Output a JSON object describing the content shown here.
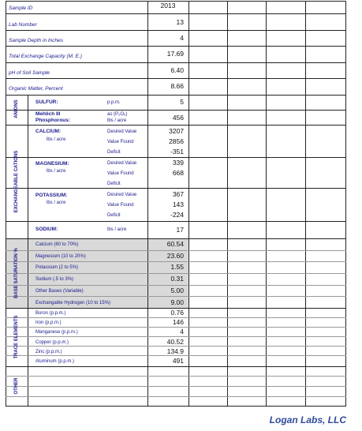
{
  "header": {
    "sample_id_label": "Sample ID",
    "year": "2013"
  },
  "rows": {
    "lab_number": {
      "label": "Lab Number",
      "value": "13"
    },
    "sample_depth": {
      "label": "Sample Depth in Inches",
      "value": "4"
    },
    "tec": {
      "label": "Total Exchange Capacity (M. E.)",
      "value": "17.69"
    },
    "ph": {
      "label": "pH of Soil Sample",
      "value": "6.40"
    },
    "organic": {
      "label": "Organic Matter, Percent",
      "value": "8.66"
    }
  },
  "anions": {
    "section": "ANIONS",
    "sulfur": {
      "label": "SULFUR:",
      "unit": "p.p.m.",
      "value": "5"
    },
    "phos": {
      "label1": "Mehlich III",
      "label2": "Phosphorous:",
      "unit1": "as (P₂O₅)",
      "unit2": "lbs / acre",
      "value": "456"
    }
  },
  "cations": {
    "section": "EXCHANGEABLE CATIONS",
    "calcium": {
      "label": "CALCIUM:",
      "sub": "lbs / acre",
      "desired_label": "Desired Value",
      "found_label": "Value Found",
      "deficit_label": "Deficit",
      "desired": "3207",
      "found": "2856",
      "deficit": "-351"
    },
    "magnesium": {
      "label": "MAGNESIUM:",
      "sub": "lbs / acre",
      "desired_label": "Desired Value",
      "found_label": "Value Found",
      "deficit_label": "Deficit",
      "desired": "339",
      "found": "668",
      "deficit": ""
    },
    "potassium": {
      "label": "POTASSIUM:",
      "sub": "lbs / acre",
      "desired_label": "Desired Value",
      "found_label": "Value Found",
      "deficit_label": "Deficit",
      "desired": "367",
      "found": "143",
      "deficit": "-224"
    },
    "sodium": {
      "label": "SODIUM:",
      "unit": "lbs / acre",
      "value": "17"
    }
  },
  "base_saturation": {
    "section": "BASE SATURATION %",
    "items": [
      {
        "label": "Calcium (60 to 70%)",
        "value": "60.54"
      },
      {
        "label": "Magnesium (10 to 20%)",
        "value": "23.60"
      },
      {
        "label": "Potassium (2 to 5%)",
        "value": "1.55"
      },
      {
        "label": "Sodium (.5 to 3%)",
        "value": "0.31"
      },
      {
        "label": "Other Bases (Variable)",
        "value": "5.00"
      },
      {
        "label": "Exchangable Hydrogen (10 to 15%)",
        "value": "9.00"
      }
    ]
  },
  "trace": {
    "section": "TRACE ELEMENTS",
    "items": [
      {
        "label": "Boron (p.p.m.)",
        "value": "0.76"
      },
      {
        "label": "Iron (p.p.m.)",
        "value": "146"
      },
      {
        "label": "Manganese (p.p.m.)",
        "value": "4"
      },
      {
        "label": "Copper (p.p.m.)",
        "value": "40.52"
      },
      {
        "label": "Zinc (p.p.m.)",
        "value": "134.9"
      },
      {
        "label": "Aluminum (p.p.m.)",
        "value": "491"
      }
    ]
  },
  "other": {
    "section": "OTHER"
  },
  "footer": {
    "brand": "Logan Labs, LLC"
  }
}
